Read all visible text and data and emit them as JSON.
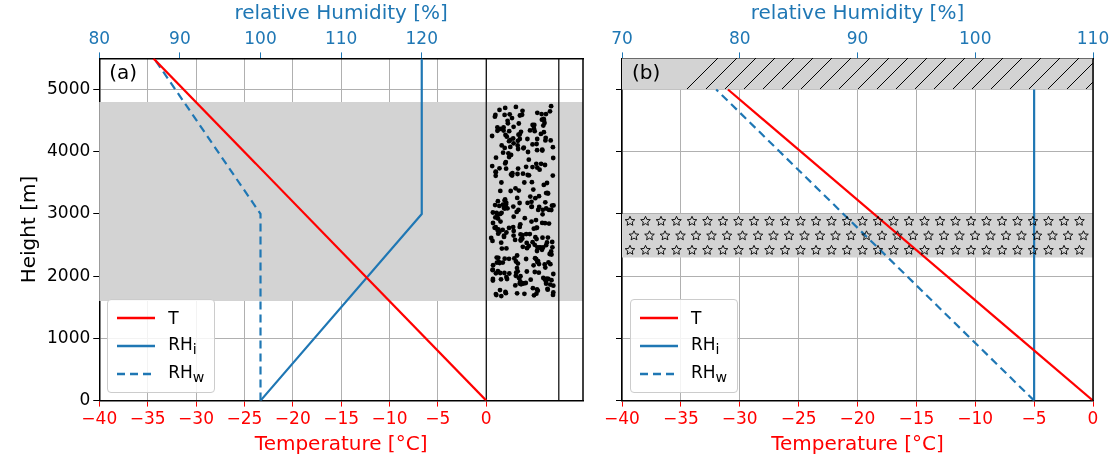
{
  "chart_data": [
    {
      "type": "line",
      "xlabel": "Temperature [°C]",
      "ylabel": "Height [m]",
      "x2label": "relative Humidity [%]",
      "xlim": [
        -40,
        10
      ],
      "xticks": [
        -40,
        -35,
        -30,
        -25,
        -20,
        -15,
        -10,
        -5,
        0
      ],
      "x2lim": [
        80,
        140
      ],
      "x2ticks": [
        80,
        90,
        100,
        110,
        120
      ],
      "ylim": [
        0,
        5500
      ],
      "yticks": [
        0,
        1000,
        2000,
        3000,
        4000,
        5000
      ],
      "grid": true,
      "legend": "bottom left",
      "marker": "none",
      "annotations": [
        "(a)"
      ],
      "bands": [
        {
          "axis": "y",
          "from": 1600,
          "to": 4800,
          "color": "#d3d3d3"
        }
      ],
      "ref_lines": [
        {
          "axis": "x",
          "value": 0,
          "color": "#000000"
        },
        {
          "axis": "x",
          "value": 7.5,
          "color": "#000000"
        }
      ],
      "series": [
        {
          "name": "T",
          "color": "#ff0000",
          "x": [
            0,
            -34.4
          ],
          "values": [
            0,
            5500
          ]
        },
        {
          "name": "RH$_{i}$",
          "color": "#1f77b4",
          "axis": "x2",
          "x": [
            100,
            120,
            120
          ],
          "values": [
            0,
            3000,
            5500
          ]
        },
        {
          "name": "RH$_{w}$",
          "color": "#1f77b4",
          "axis": "x2",
          "line_style": "dashed",
          "x": [
            100,
            100,
            86.8
          ],
          "values": [
            0,
            3000,
            5500
          ]
        }
      ]
    },
    {
      "type": "line",
      "xlabel": "Temperature [°C]",
      "x2label": "relative Humidity [%]",
      "xlim": [
        -40,
        0
      ],
      "xticks": [
        -40,
        -35,
        -30,
        -25,
        -20,
        -15,
        -10,
        -5,
        0
      ],
      "x2lim": [
        70,
        110
      ],
      "x2ticks": [
        70,
        80,
        90,
        100,
        110
      ],
      "ylim": [
        0,
        5500
      ],
      "yticks": [
        0,
        1000,
        2000,
        3000,
        4000,
        5000
      ],
      "tick_labels": "x",
      "grid": true,
      "legend": "bottom left",
      "marker": "none",
      "annotations": [
        "(b)"
      ],
      "bands": [
        {
          "axis": "y",
          "from": 5000,
          "to": 5500,
          "color": "#d3d3d3"
        },
        {
          "axis": "y",
          "from": 2300,
          "to": 3000,
          "color": "#d3d3d3"
        }
      ],
      "series": [
        {
          "name": "T",
          "color": "#ff0000",
          "x": [
            0,
            -31
          ],
          "values": [
            0,
            5000
          ]
        },
        {
          "name": "RH$_{i}$",
          "color": "#1f77b4",
          "axis": "x2",
          "x": [
            105,
            105
          ],
          "values": [
            0,
            5000
          ]
        },
        {
          "name": "RH$_{w}$",
          "color": "#1f77b4",
          "axis": "x2",
          "line_style": "dashed",
          "x": [
            105,
            78
          ],
          "values": [
            0,
            5000
          ]
        }
      ]
    }
  ]
}
